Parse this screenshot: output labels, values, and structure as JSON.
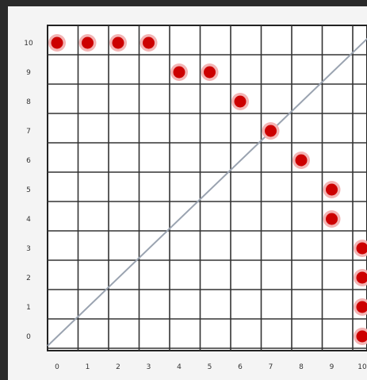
{
  "chart_data": {
    "type": "scatter",
    "title": "",
    "xlabel": "",
    "ylabel": "",
    "xlim": [
      0,
      10
    ],
    "ylim": [
      0,
      10
    ],
    "x_ticks": [
      "0",
      "1",
      "2",
      "3",
      "4",
      "5",
      "6",
      "7",
      "8",
      "9",
      "10"
    ],
    "y_ticks": [
      "0",
      "1",
      "2",
      "3",
      "4",
      "5",
      "6",
      "7",
      "8",
      "9",
      "10"
    ],
    "grid": true,
    "reference_line": {
      "from": [
        0,
        0
      ],
      "to": [
        10,
        10
      ],
      "color": "#9aa3b0"
    },
    "point_color": "#cc0000",
    "point_halo_color": "#f3b4b4",
    "points": [
      {
        "x": 0,
        "y": 10
      },
      {
        "x": 1,
        "y": 10
      },
      {
        "x": 2,
        "y": 10
      },
      {
        "x": 3,
        "y": 10
      },
      {
        "x": 4,
        "y": 9
      },
      {
        "x": 5,
        "y": 9
      },
      {
        "x": 6,
        "y": 8
      },
      {
        "x": 7,
        "y": 7
      },
      {
        "x": 8,
        "y": 6
      },
      {
        "x": 9,
        "y": 5
      },
      {
        "x": 9,
        "y": 4
      },
      {
        "x": 10,
        "y": 3
      },
      {
        "x": 10,
        "y": 2
      },
      {
        "x": 10,
        "y": 1
      },
      {
        "x": 10,
        "y": 0
      }
    ]
  }
}
